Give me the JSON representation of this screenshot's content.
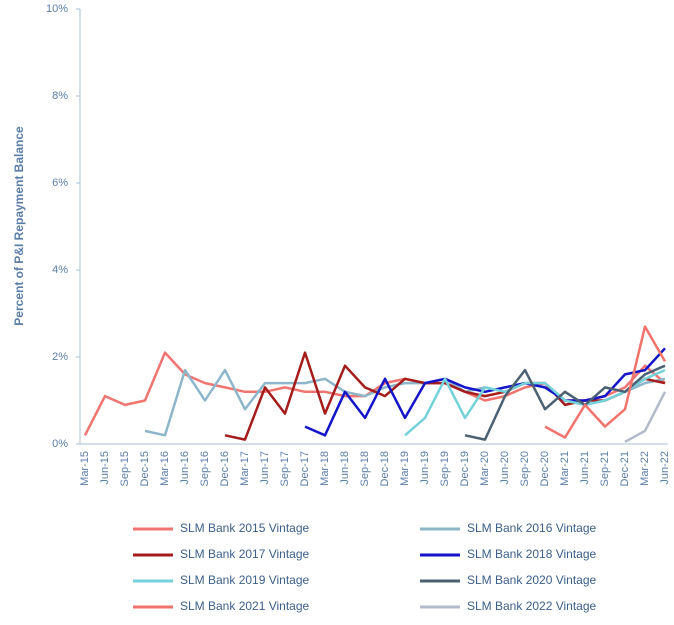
{
  "chart_data": {
    "type": "line",
    "y_label": "Percent of P&I Repayment  Balance",
    "categories": [
      "Mar-15",
      "Jun-15",
      "Sep-15",
      "Dec-15",
      "Mar-16",
      "Jun-16",
      "Sep-16",
      "Dec-16",
      "Mar-17",
      "Jun-17",
      "Sep-17",
      "Dec-17",
      "Mar-18",
      "Jun-18",
      "Sep-18",
      "Dec-18",
      "Mar-19",
      "Jun-19",
      "Sep-19",
      "Dec-19",
      "Mar-20",
      "Jun-20",
      "Sep-20",
      "Dec-20",
      "Mar-21",
      "Jun-21",
      "Sep-21",
      "Dec-21",
      "Mar-22",
      "Jun-22"
    ],
    "ylim": [
      0,
      10
    ],
    "yticks": [
      {
        "value": 0,
        "label": "0%"
      },
      {
        "value": 2,
        "label": "2%"
      },
      {
        "value": 4,
        "label": "4%"
      },
      {
        "value": 6,
        "label": "6%"
      },
      {
        "value": 8,
        "label": "8%"
      },
      {
        "value": 10,
        "label": "10%"
      }
    ],
    "grid": false,
    "legend_position": "bottom",
    "series": [
      {
        "name": "SLM Bank 2015 Vintage",
        "color": "#f07470",
        "values": [
          0.2,
          1.1,
          0.9,
          1.0,
          2.1,
          1.6,
          1.4,
          1.3,
          1.2,
          1.2,
          1.3,
          1.2,
          1.2,
          1.1,
          1.1,
          1.4,
          1.5,
          1.4,
          1.4,
          1.2,
          1.0,
          1.1,
          1.3,
          1.4,
          1.0,
          1.0,
          1.1,
          1.3,
          1.8,
          1.4
        ]
      },
      {
        "name": "SLM Bank 2016 Vintage",
        "color": "#8db6ca",
        "values": [
          null,
          null,
          null,
          0.3,
          0.2,
          1.7,
          1.0,
          1.7,
          0.8,
          1.4,
          1.4,
          1.4,
          1.5,
          1.2,
          1.1,
          1.3,
          1.4,
          1.4,
          1.5,
          1.2,
          1.3,
          1.2,
          1.4,
          1.3,
          1.0,
          0.9,
          1.0,
          1.2,
          1.4,
          1.5
        ]
      },
      {
        "name": "SLM Bank 2017 Vintage",
        "color": "#a51c1c",
        "values": [
          null,
          null,
          null,
          null,
          null,
          null,
          null,
          0.2,
          0.1,
          1.3,
          0.7,
          2.1,
          0.7,
          1.8,
          1.3,
          1.1,
          1.5,
          1.4,
          1.4,
          1.2,
          1.1,
          1.2,
          1.4,
          1.4,
          0.9,
          1.0,
          1.0,
          1.2,
          1.5,
          1.4
        ]
      },
      {
        "name": "SLM Bank 2018 Vintage",
        "color": "#1414c8",
        "values": [
          null,
          null,
          null,
          null,
          null,
          null,
          null,
          null,
          null,
          null,
          null,
          0.4,
          0.2,
          1.2,
          0.6,
          1.5,
          0.6,
          1.4,
          1.5,
          1.3,
          1.2,
          1.3,
          1.4,
          1.3,
          1.0,
          1.0,
          1.1,
          1.6,
          1.7,
          2.2
        ]
      },
      {
        "name": "SLM Bank 2019 Vintage",
        "color": "#74d2da",
        "values": [
          null,
          null,
          null,
          null,
          null,
          null,
          null,
          null,
          null,
          null,
          null,
          null,
          null,
          null,
          null,
          null,
          0.2,
          0.6,
          1.5,
          0.6,
          1.3,
          1.2,
          1.4,
          1.4,
          1.0,
          0.9,
          1.0,
          1.2,
          1.5,
          1.7
        ]
      },
      {
        "name": "SLM Bank 2020 Vintage",
        "color": "#4b6173",
        "values": [
          null,
          null,
          null,
          null,
          null,
          null,
          null,
          null,
          null,
          null,
          null,
          null,
          null,
          null,
          null,
          null,
          null,
          null,
          null,
          0.2,
          0.1,
          1.1,
          1.7,
          0.8,
          1.2,
          0.9,
          1.3,
          1.2,
          1.6,
          1.8
        ]
      },
      {
        "name": "SLM Bank 2021 Vintage",
        "color": "#f2726c",
        "values": [
          null,
          null,
          null,
          null,
          null,
          null,
          null,
          null,
          null,
          null,
          null,
          null,
          null,
          null,
          null,
          null,
          null,
          null,
          null,
          null,
          null,
          null,
          null,
          0.4,
          0.15,
          0.9,
          0.4,
          0.8,
          2.7,
          1.9
        ]
      },
      {
        "name": "SLM Bank 2022 Vintage",
        "color": "#b3bbca",
        "values": [
          null,
          null,
          null,
          null,
          null,
          null,
          null,
          null,
          null,
          null,
          null,
          null,
          null,
          null,
          null,
          null,
          null,
          null,
          null,
          null,
          null,
          null,
          null,
          null,
          null,
          null,
          null,
          0.05,
          0.3,
          1.2
        ]
      }
    ]
  }
}
